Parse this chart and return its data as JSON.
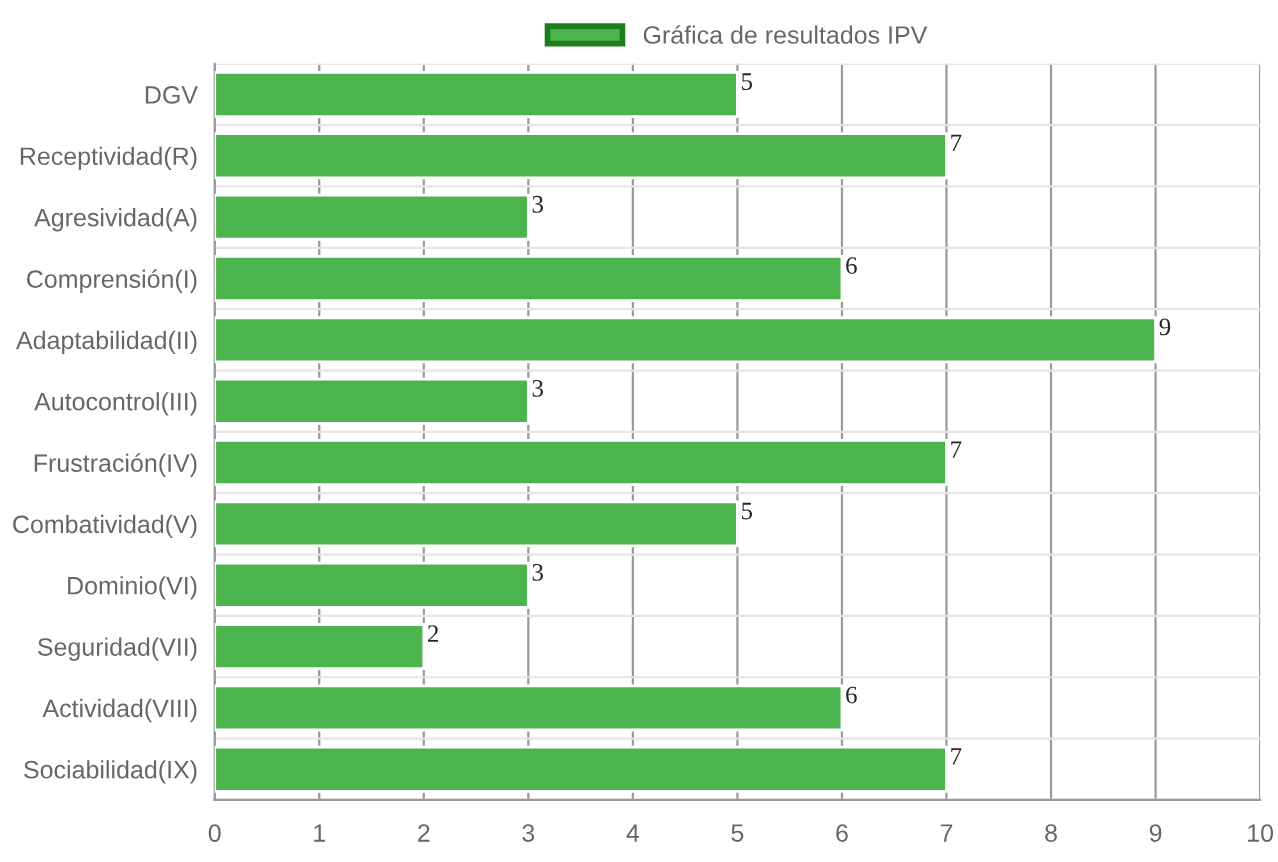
{
  "chart_data": {
    "type": "bar",
    "orientation": "horizontal",
    "categories": [
      "DGV",
      "Receptividad(R)",
      "Agresividad(A)",
      "Comprensión(I)",
      "Adaptabilidad(II)",
      "Autocontrol(III)",
      "Frustración(IV)",
      "Combatividad(V)",
      "Dominio(VI)",
      "Seguridad(VII)",
      "Actividad(VIII)",
      "Sociabilidad(IX)"
    ],
    "series": [
      {
        "name": "Gráfica de resultados IPV",
        "color": "#4cb44c",
        "values": [
          5,
          7,
          3,
          6,
          9,
          3,
          7,
          5,
          3,
          2,
          6,
          7
        ]
      }
    ],
    "xlim": [
      0,
      10
    ],
    "xticks": [
      0,
      1,
      2,
      3,
      4,
      5,
      6,
      7,
      8,
      9,
      10
    ],
    "grid": true,
    "legend": "top",
    "data_labels": true
  }
}
